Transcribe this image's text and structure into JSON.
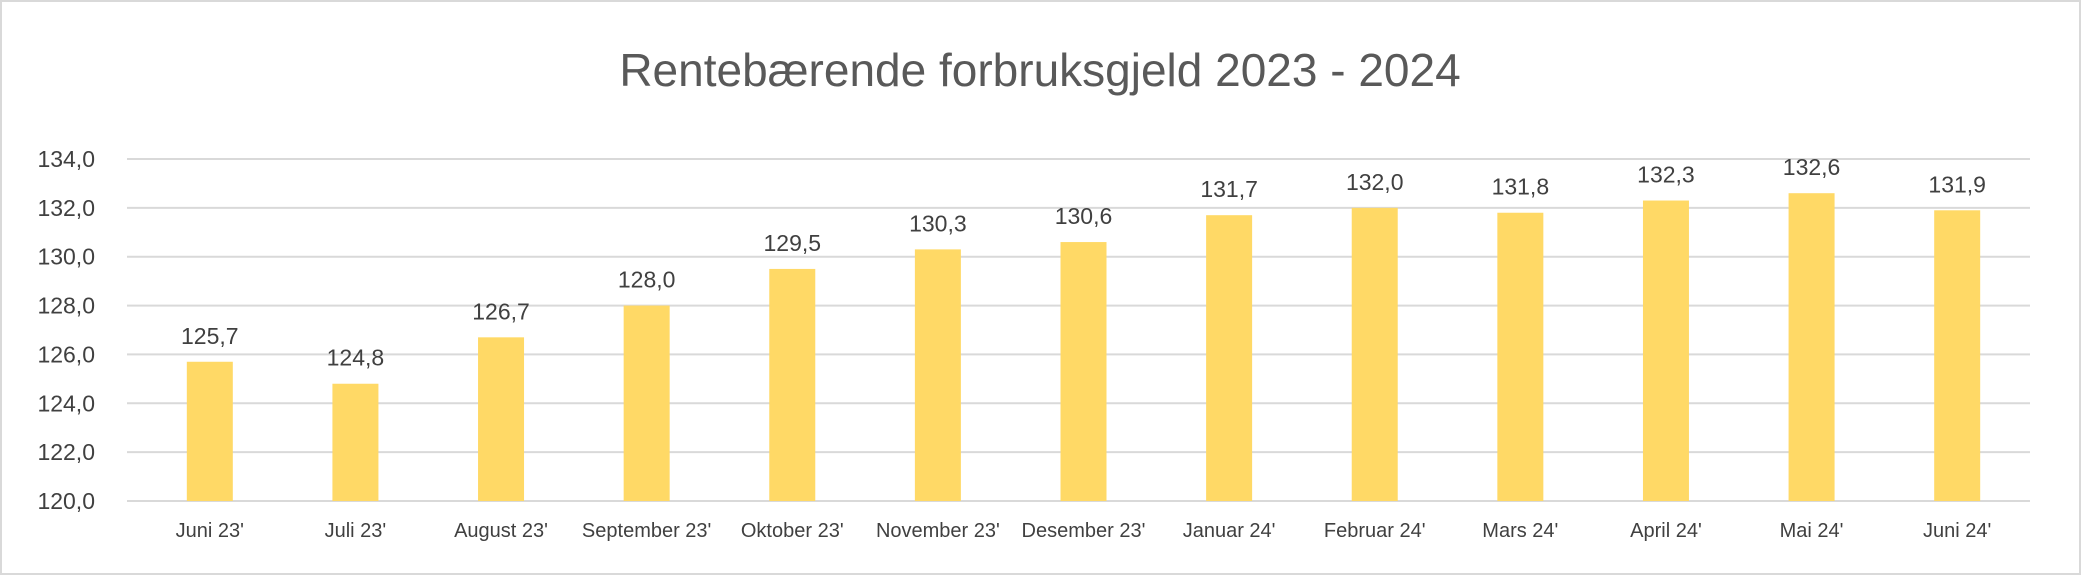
{
  "chart_data": {
    "type": "bar",
    "title": "Rentebærende forbruksgjeld 2023 - 2024",
    "categories": [
      "Juni 23'",
      "Juli 23'",
      "August 23'",
      "September 23'",
      "Oktober 23'",
      "November 23'",
      "Desember 23'",
      "Januar 24'",
      "Februar 24'",
      "Mars 24'",
      "April 24'",
      "Mai 24'",
      "Juni 24'"
    ],
    "values": [
      125.7,
      124.8,
      126.7,
      128.0,
      129.5,
      130.3,
      130.6,
      131.7,
      132.0,
      131.8,
      132.3,
      132.6,
      131.9
    ],
    "data_labels": [
      "125,7",
      "124,8",
      "126,7",
      "128,0",
      "129,5",
      "130,3",
      "130,6",
      "131,7",
      "132,0",
      "131,8",
      "132,3",
      "132,6",
      "131,9"
    ],
    "ylim": [
      120,
      134
    ],
    "yticks": [
      120,
      122,
      124,
      126,
      128,
      130,
      132,
      134
    ],
    "ytick_labels": [
      "120,0",
      "122,0",
      "124,0",
      "126,0",
      "128,0",
      "130,0",
      "132,0",
      "134,0"
    ],
    "xlabel": "",
    "ylabel": "",
    "grid": true,
    "legend": "none",
    "bar_color": "#FFD966"
  }
}
